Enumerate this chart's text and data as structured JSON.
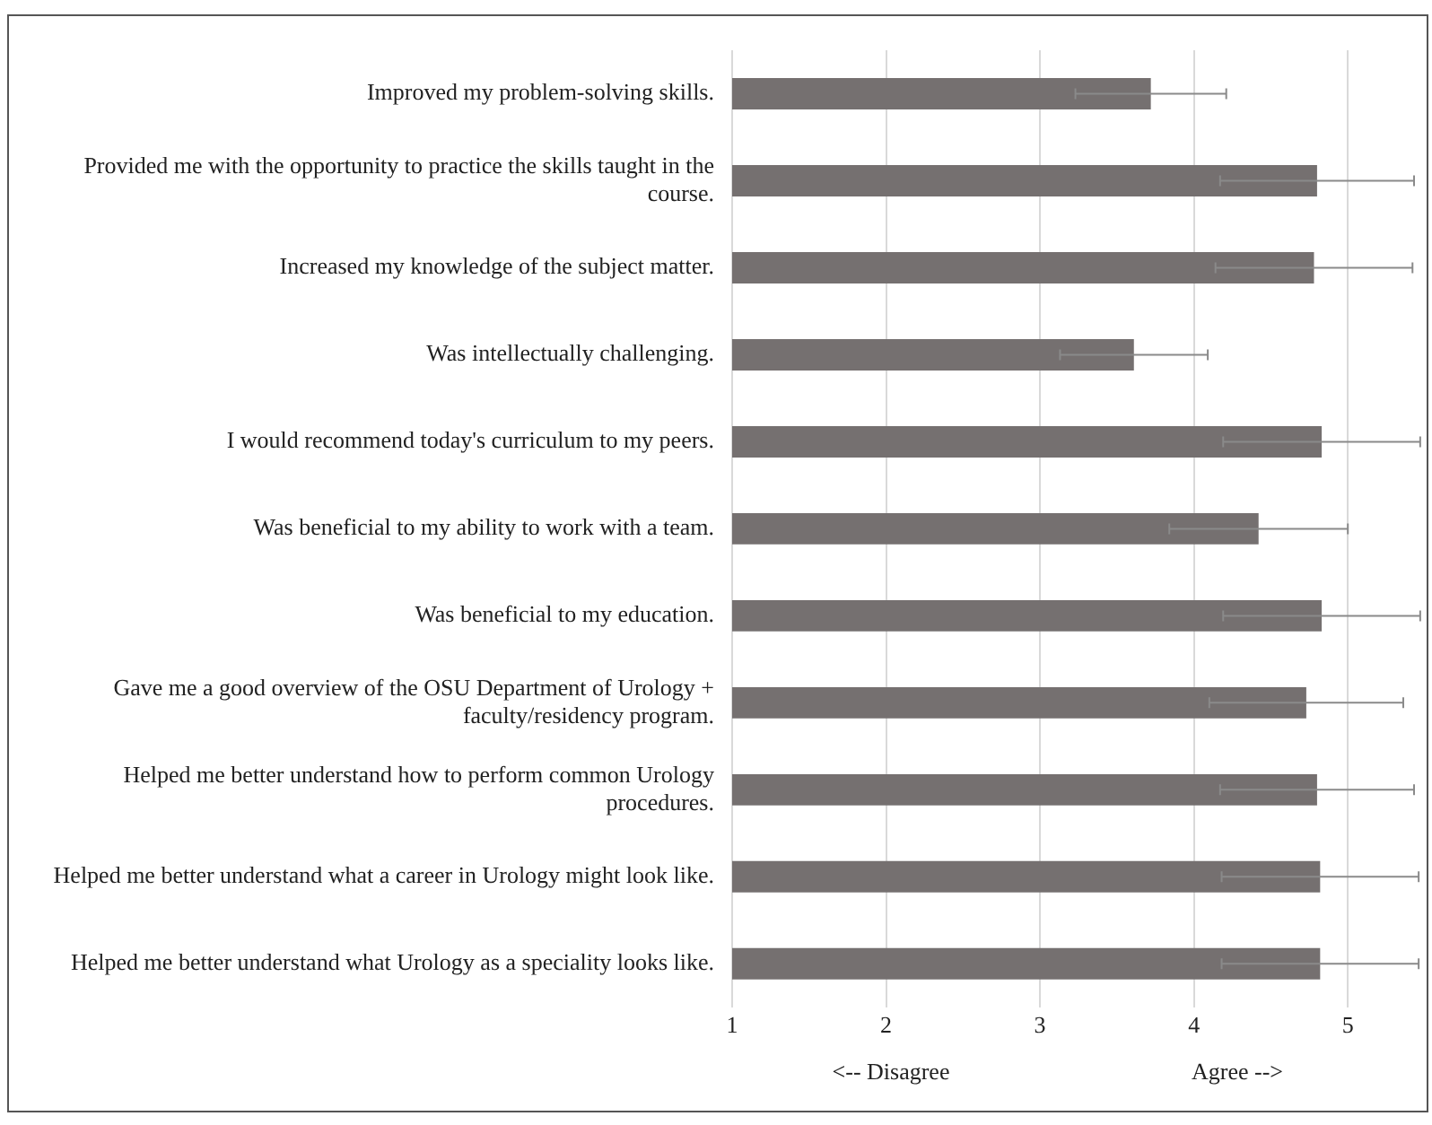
{
  "chart_data": {
    "type": "bar",
    "orientation": "horizontal",
    "categories": [
      "Improved my problem-solving skills.",
      "Provided me with the opportunity to practice the skills taught in the course.",
      "Increased my knowledge of the subject matter.",
      "Was intellectually challenging.",
      "I would recommend today's curriculum to my peers.",
      "Was beneficial to my ability to work with a team.",
      "Was beneficial to my education.",
      "Gave me a good overview of the OSU Department of Urology + faculty/residency program.",
      "Helped me better understand how to perform common Urology procedures.",
      "Helped me better understand what a career in Urology might look like.",
      "Helped me better understand what Urology as a speciality looks like."
    ],
    "values": [
      3.72,
      4.8,
      4.78,
      3.61,
      4.83,
      4.42,
      4.83,
      4.73,
      4.8,
      4.82,
      4.82
    ],
    "errors": [
      0.49,
      0.63,
      0.64,
      0.48,
      0.64,
      0.58,
      0.64,
      0.63,
      0.63,
      0.64,
      0.64
    ],
    "color": "#757070",
    "xlim": [
      1,
      5.5
    ],
    "xticks": [
      1,
      2,
      3,
      4,
      5
    ],
    "grid": "x",
    "annotations": [
      "<-- Disagree",
      "Agree -->"
    ]
  }
}
